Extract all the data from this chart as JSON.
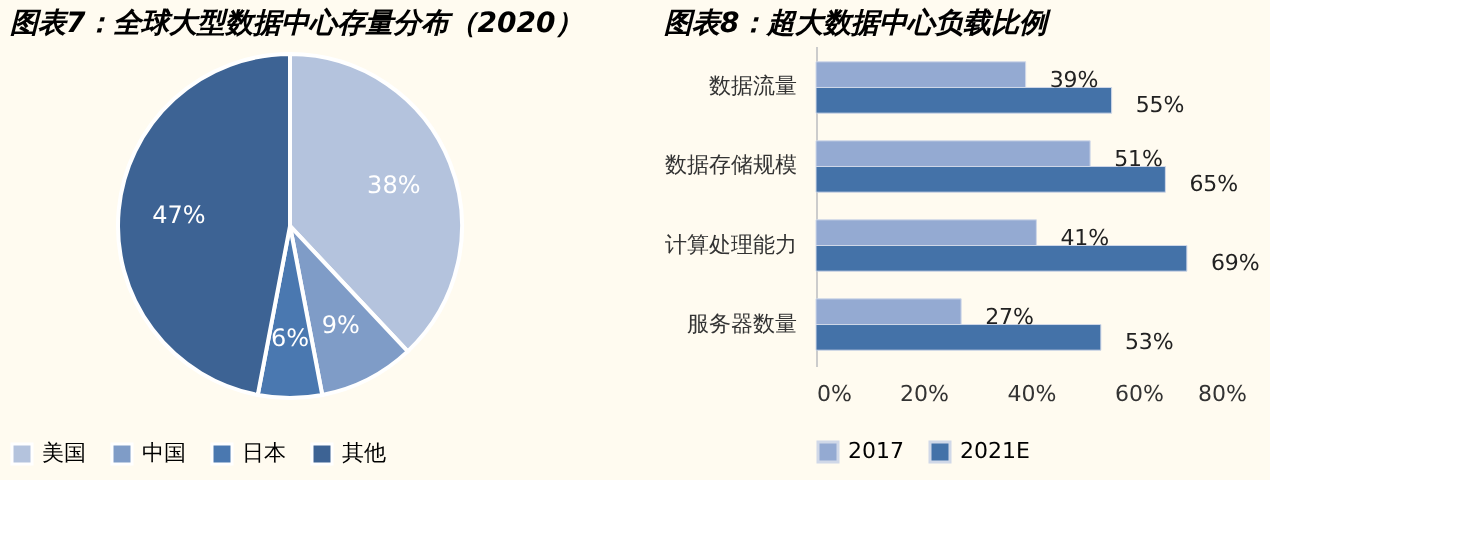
{
  "chart_data": [
    {
      "type": "pie",
      "title": "图表7：全球大型数据中心存量分布（2020）",
      "categories": [
        "美国",
        "中国",
        "日本",
        "其他"
      ],
      "values": [
        38,
        9,
        6,
        47
      ],
      "colors": [
        "#b4c3dd",
        "#7f9cc7",
        "#4a78b0",
        "#3d6394"
      ],
      "value_labels": [
        "38%",
        "9%",
        "6%",
        "47%"
      ],
      "legend": "bottom"
    },
    {
      "type": "bar",
      "orientation": "horizontal",
      "title": "图表8：超大数据中心负载比例",
      "categories": [
        "数据流量",
        "数据存储规模",
        "计算处理能力",
        "服务器数量"
      ],
      "series": [
        {
          "name": "2017",
          "color": "#94aad2",
          "values": [
            39,
            51,
            41,
            27
          ],
          "value_labels": [
            "39%",
            "51%",
            "41%",
            "27%"
          ]
        },
        {
          "name": "2021E",
          "color": "#4472a8",
          "values": [
            55,
            65,
            69,
            53
          ],
          "value_labels": [
            "55%",
            "65%",
            "69%",
            "53%"
          ]
        }
      ],
      "xlim": [
        0,
        80
      ],
      "xticks": [
        {
          "value": 0,
          "label": "0%"
        },
        {
          "value": 20,
          "label": "20%"
        },
        {
          "value": 40,
          "label": "40%"
        },
        {
          "value": 60,
          "label": "60%"
        },
        {
          "value": 80,
          "label": "80%"
        }
      ],
      "grid": false,
      "legend": "bottom"
    }
  ]
}
